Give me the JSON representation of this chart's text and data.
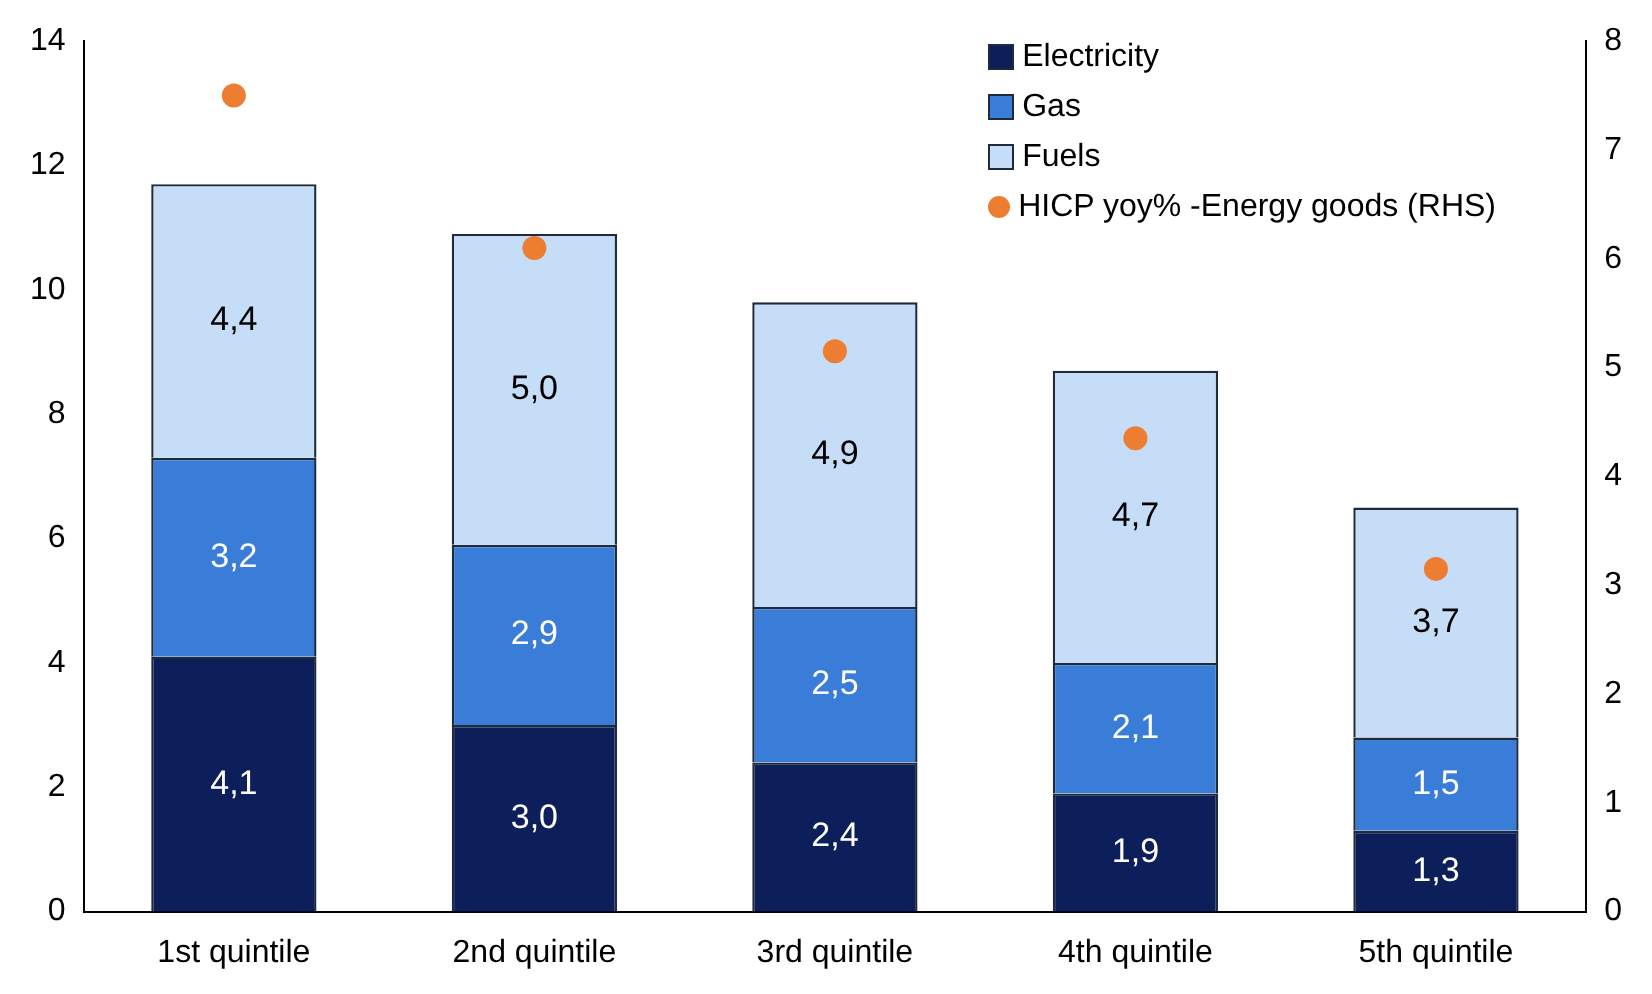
{
  "chart_data": {
    "type": "bar",
    "stacked": true,
    "categories": [
      "1st quintile",
      "2nd quintile",
      "3rd quintile",
      "4th quintile",
      "5th quintile"
    ],
    "series": [
      {
        "name": "Electricity",
        "color": "#0c1f5a",
        "values": [
          4.1,
          3.0,
          2.4,
          1.9,
          1.3
        ],
        "value_labels": [
          "4,1",
          "3,0",
          "2,4",
          "1,9",
          "1,3"
        ]
      },
      {
        "name": "Gas",
        "color": "#3a7dd9",
        "values": [
          3.2,
          2.9,
          2.5,
          2.1,
          1.5
        ],
        "value_labels": [
          "3,2",
          "2,9",
          "2,5",
          "2,1",
          "1,5"
        ]
      },
      {
        "name": "Fuels",
        "color": "#c6ddf7",
        "values": [
          4.4,
          5.0,
          4.9,
          4.7,
          3.7
        ],
        "value_labels": [
          "4,4",
          "5,0",
          "4,9",
          "4,7",
          "3,7"
        ]
      },
      {
        "name": "HICP yoy% -Energy goods (RHS)",
        "type": "scatter",
        "axis": "y2",
        "marker": "circle",
        "color": "#ed7d31",
        "x": [
          "1st quintile",
          "2nd quintile",
          "3rd quintile",
          "4th quintile",
          "5th quintile"
        ],
        "values": [
          7.5,
          6.1,
          5.15,
          4.35,
          3.15
        ]
      }
    ],
    "ylim": [
      0,
      14
    ],
    "yticks": [
      0,
      2,
      4,
      6,
      8,
      10,
      12,
      14
    ],
    "y2lim": [
      0,
      8
    ],
    "y2ticks": [
      0,
      1,
      2,
      3,
      4,
      5,
      6,
      7,
      8
    ],
    "legend": "top right"
  }
}
